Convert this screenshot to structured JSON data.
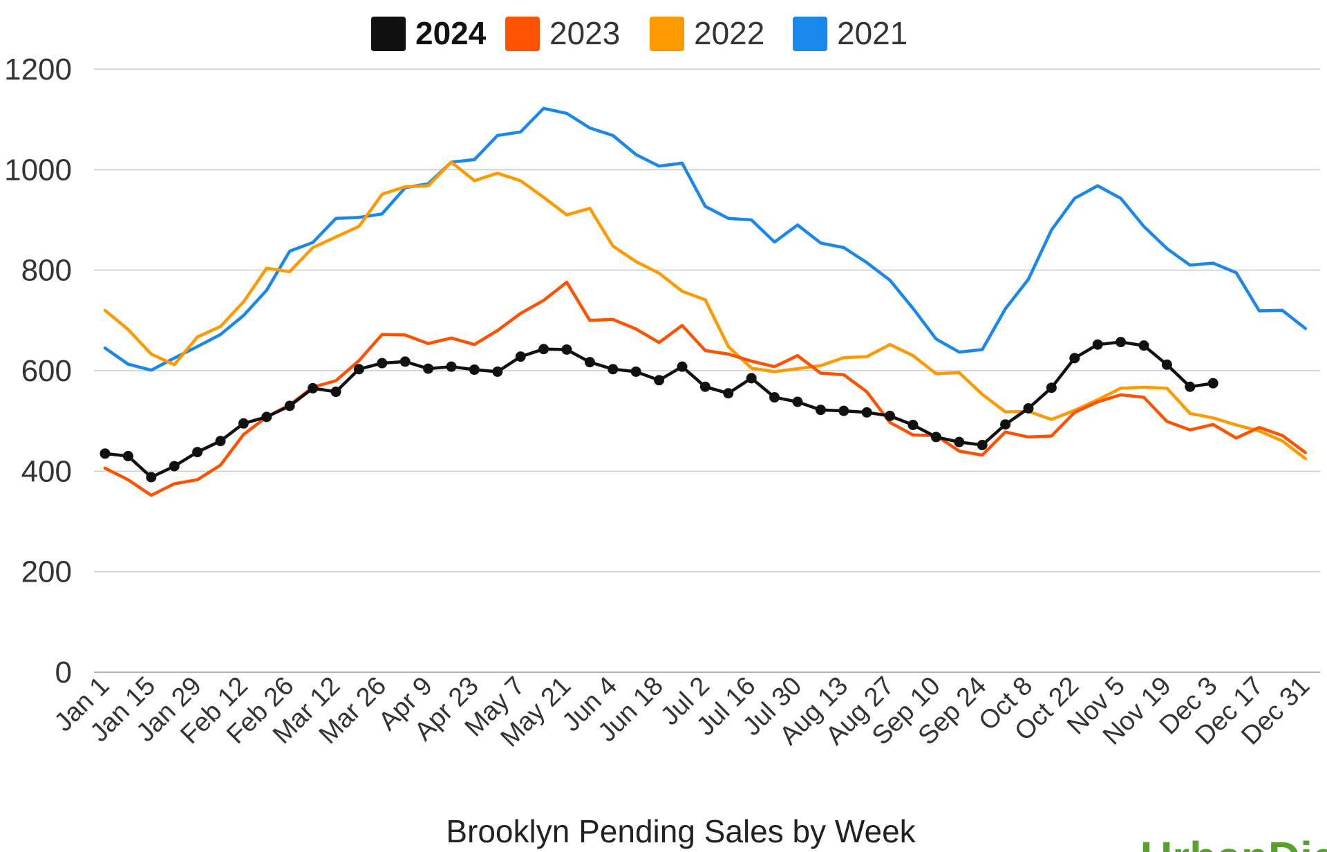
{
  "chart_data": {
    "type": "line",
    "title": "Brooklyn Pending Sales by Week",
    "xlabel": "",
    "ylabel": "",
    "ylim": [
      0,
      1200
    ],
    "yticks": [
      0,
      200,
      400,
      600,
      800,
      1000,
      1200
    ],
    "grid": true,
    "legend_position": "top",
    "x_tick_labels": [
      "Jan 1",
      "Jan 15",
      "Jan 29",
      "Feb 12",
      "Feb 26",
      "Mar 12",
      "Mar 26",
      "Apr 9",
      "Apr 23",
      "May 7",
      "May 21",
      "Jun 4",
      "Jun 18",
      "Jul 2",
      "Jul 16",
      "Jul 30",
      "Aug 13",
      "Aug 27",
      "Sep 10",
      "Sep 24",
      "Oct 8",
      "Oct 22",
      "Nov 5",
      "Nov 19",
      "Dec 3",
      "Dec 17",
      "Dec 31"
    ],
    "series": [
      {
        "name": "2024",
        "color": "#111111",
        "markers": true,
        "bold_legend": true,
        "values": [
          435,
          430,
          388,
          410,
          438,
          460,
          495,
          508,
          530,
          565,
          558,
          603,
          615,
          618,
          604,
          608,
          602,
          598,
          628,
          643,
          642,
          617,
          603,
          598,
          581,
          608,
          568,
          555,
          585,
          547,
          538,
          522,
          520,
          517,
          510,
          492,
          468,
          458,
          452,
          493,
          525,
          566,
          625,
          652,
          657,
          650,
          612,
          568,
          575
        ]
      },
      {
        "name": "2023",
        "color": "#ff5200",
        "markers": false,
        "values": [
          406,
          383,
          352,
          375,
          383,
          412,
          473,
          508,
          532,
          567,
          580,
          620,
          672,
          671,
          654,
          665,
          652,
          680,
          714,
          740,
          776,
          700,
          702,
          683,
          656,
          690,
          640,
          633,
          619,
          608,
          630,
          595,
          592,
          558,
          497,
          472,
          471,
          440,
          432,
          478,
          468,
          470,
          517,
          538,
          552,
          547,
          499,
          482,
          493,
          466,
          487,
          471,
          437
        ]
      },
      {
        "name": "2022",
        "color": "#ff9900",
        "markers": false,
        "values": [
          720,
          682,
          633,
          612,
          667,
          688,
          737,
          804,
          797,
          845,
          866,
          887,
          951,
          966,
          968,
          1015,
          978,
          993,
          978,
          945,
          910,
          923,
          848,
          817,
          794,
          758,
          741,
          648,
          605,
          598,
          604,
          610,
          626,
          628,
          652,
          630,
          594,
          596,
          553,
          518,
          519,
          503,
          521,
          542,
          565,
          567,
          565,
          515,
          506,
          492,
          480,
          460,
          425
        ]
      },
      {
        "name": "2021",
        "color": "#1a87ea",
        "markers": false,
        "values": [
          645,
          613,
          601,
          625,
          648,
          672,
          710,
          760,
          838,
          855,
          903,
          905,
          912,
          964,
          972,
          1015,
          1020,
          1068,
          1075,
          1122,
          1112,
          1083,
          1068,
          1030,
          1007,
          1013,
          927,
          903,
          900,
          856,
          890,
          854,
          845,
          815,
          780,
          724,
          663,
          637,
          642,
          723,
          782,
          880,
          943,
          968,
          943,
          887,
          843,
          810,
          814,
          795,
          719,
          720,
          684
        ]
      }
    ]
  },
  "logo_text": "UrbanDig"
}
